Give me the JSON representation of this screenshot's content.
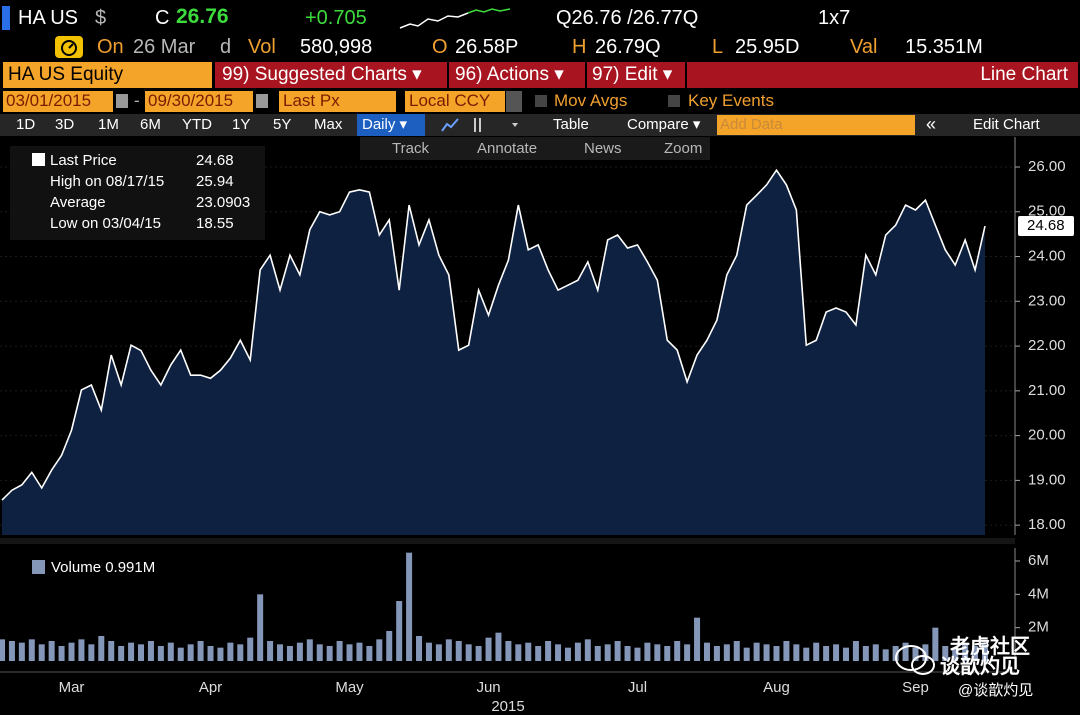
{
  "header": {
    "ticker": "HA US",
    "currency": "$",
    "close_label": "C",
    "close": "26.76",
    "change": "+0.705",
    "quote": "Q26.76 /26.77Q",
    "size": "1x7",
    "on_label": "On",
    "date": "26 Mar",
    "d_label": "d",
    "vol_label": "Vol",
    "vol": "580,998",
    "open_label": "O",
    "open": "26.58P",
    "high_label": "H",
    "high": "26.79Q",
    "low_label": "L",
    "low": "25.95D",
    "val_label": "Val",
    "val": "15.351M"
  },
  "menu": {
    "security": "HA US Equity",
    "suggested": "99) Suggested Charts ▾",
    "actions": "96) Actions ▾",
    "edit": "97) Edit ▾",
    "chart_type": "Line Chart"
  },
  "settings": {
    "start": "03/01/2015",
    "dash": "-",
    "end": "09/30/2015",
    "field": "Last Px",
    "ccy": "Local CCY",
    "mov_avgs": "Mov Avgs",
    "key_events": "Key Events"
  },
  "toolbar": {
    "ranges": [
      "1D",
      "3D",
      "1M",
      "6M",
      "YTD",
      "1Y",
      "5Y",
      "Max"
    ],
    "period": "Daily ▾",
    "table": "Table",
    "compare": "Compare ▾",
    "add_data": "Add Data",
    "edit_chart": "Edit Chart",
    "tools": [
      "Track",
      "Annotate",
      "News",
      "Zoom"
    ]
  },
  "legend": [
    {
      "label": "Last Price",
      "value": 24.68
    },
    {
      "label": "High on 08/17/15",
      "value": 25.94
    },
    {
      "label": "Average",
      "value": 23.0903
    },
    {
      "label": "Low on 03/04/15",
      "value": 18.55
    }
  ],
  "chart_data": [
    {
      "type": "area",
      "color": "#ffffff",
      "fill": "#0e2140",
      "values": [
        18.56,
        18.78,
        18.9,
        19.18,
        18.83,
        19.23,
        19.56,
        20.12,
        21.02,
        21.13,
        20.57,
        21.8,
        21.13,
        22.02,
        21.9,
        21.46,
        21.13,
        21.58,
        21.91,
        21.35,
        21.35,
        21.28,
        21.46,
        21.73,
        22.13,
        21.69,
        23.7,
        24.03,
        23.25,
        24.03,
        23.59,
        24.6,
        25.0,
        24.93,
        25.0,
        25.44,
        25.49,
        25.44,
        24.48,
        24.82,
        23.25,
        25.15,
        24.26,
        24.82,
        24.03,
        23.59,
        21.91,
        22.02,
        23.25,
        22.69,
        23.36,
        23.92,
        25.15,
        24.15,
        24.26,
        23.7,
        23.25,
        23.36,
        23.47,
        23.88,
        23.25,
        24.37,
        24.48,
        24.19,
        24.26,
        23.88,
        23.47,
        22.13,
        21.91,
        21.2,
        21.8,
        22.13,
        22.58,
        23.59,
        24.03,
        25.15,
        25.37,
        25.6,
        25.93,
        25.6,
        25.04,
        22.02,
        22.13,
        22.76,
        22.85,
        22.76,
        22.47,
        24.03,
        23.59,
        24.48,
        24.7,
        25.15,
        25.04,
        25.26,
        24.7,
        24.15,
        23.81,
        24.37,
        23.7,
        24.68
      ],
      "ylim": [
        17.78,
        26.67
      ],
      "yticks": [
        {
          "value": 18,
          "label": "18.00"
        },
        {
          "value": 19,
          "label": "19.00"
        },
        {
          "value": 20,
          "label": "20.00"
        },
        {
          "value": 21,
          "label": "21.00"
        },
        {
          "value": 22,
          "label": "22.00"
        },
        {
          "value": 23,
          "label": "23.00"
        },
        {
          "value": 24,
          "label": "24.00"
        },
        {
          "value": 25,
          "label": "25.00"
        },
        {
          "value": 26,
          "label": "26.00"
        }
      ],
      "grid": true
    },
    {
      "type": "bar",
      "legend": "Volume 0.991M",
      "color": "#8597b8",
      "categories": [
        null,
        null,
        null,
        null,
        null,
        null,
        null,
        "Mar",
        null,
        null,
        null,
        null,
        null,
        null,
        null,
        null,
        null,
        null,
        null,
        null,
        null,
        "Apr",
        null,
        null,
        null,
        null,
        null,
        null,
        null,
        null,
        null,
        null,
        null,
        null,
        null,
        "May",
        null,
        null,
        null,
        null,
        null,
        null,
        null,
        null,
        null,
        null,
        null,
        null,
        null,
        "Jun",
        null,
        null,
        null,
        null,
        null,
        null,
        null,
        null,
        null,
        null,
        null,
        null,
        null,
        null,
        "Jul",
        null,
        null,
        null,
        null,
        null,
        null,
        null,
        null,
        null,
        null,
        null,
        null,
        null,
        "Aug",
        null,
        null,
        null,
        null,
        null,
        null,
        null,
        null,
        null,
        null,
        null,
        null,
        null,
        "Sep",
        null,
        null,
        null,
        null,
        null,
        null,
        null
      ],
      "values": [
        1.3,
        1.2,
        1.1,
        1.3,
        1.0,
        1.2,
        0.9,
        1.1,
        1.3,
        1.0,
        1.5,
        1.2,
        0.9,
        1.1,
        1.0,
        1.2,
        0.9,
        1.1,
        0.8,
        1.0,
        1.2,
        0.9,
        0.8,
        1.1,
        1.0,
        1.4,
        4.0,
        1.2,
        1.0,
        0.9,
        1.1,
        1.3,
        1.0,
        0.9,
        1.2,
        1.0,
        1.1,
        0.9,
        1.3,
        1.8,
        3.6,
        6.5,
        1.5,
        1.1,
        1.0,
        1.3,
        1.2,
        1.0,
        0.9,
        1.4,
        1.7,
        1.2,
        1.0,
        1.1,
        0.9,
        1.2,
        1.0,
        0.8,
        1.1,
        1.3,
        0.9,
        1.0,
        1.2,
        0.9,
        0.8,
        1.1,
        1.0,
        0.9,
        1.2,
        1.0,
        2.6,
        1.1,
        0.9,
        1.0,
        1.2,
        0.8,
        1.1,
        1.0,
        0.9,
        1.2,
        1.0,
        0.8,
        1.1,
        0.9,
        1.0,
        0.8,
        1.2,
        0.9,
        1.0,
        0.7,
        0.9,
        1.1,
        0.8,
        1.0,
        2.0,
        0.9,
        0.8,
        1.1,
        0.9,
        0.991
      ],
      "ylim": [
        0,
        6.78
      ],
      "yticks": [
        {
          "value": 2,
          "label": "2M"
        },
        {
          "value": 4,
          "label": "4M"
        },
        {
          "value": 6,
          "label": "6M"
        }
      ],
      "xlabel": "2015"
    }
  ],
  "watermark": {
    "brand": "老虎社区",
    "name": "谈歆灼见",
    "handle": "@谈歆灼见"
  }
}
